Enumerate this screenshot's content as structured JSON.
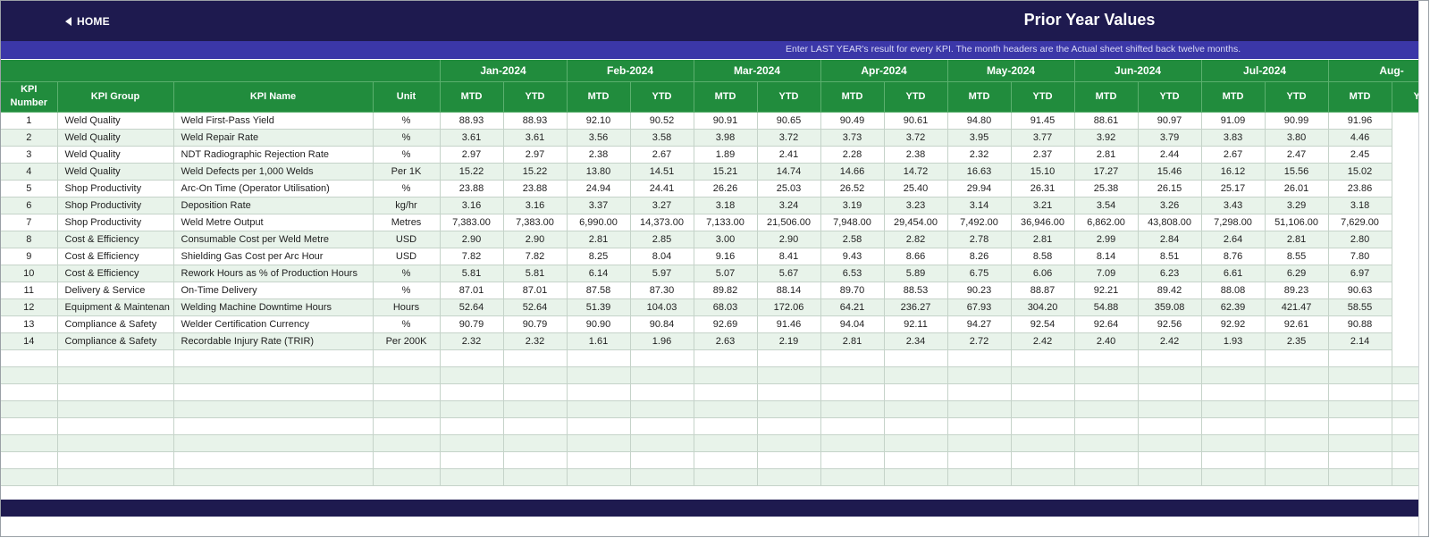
{
  "header": {
    "home_label": "HOME",
    "title": "Prior Year Values",
    "info": "Enter LAST YEAR's result for every KPI. The month headers are the Actual sheet shifted back twelve months."
  },
  "colors": {
    "topbar": "#1e1a4f",
    "infobar": "#3b37a8",
    "header_green": "#218c3d",
    "row_stripe": "#e8f3ea"
  },
  "table": {
    "fixed_headers": [
      "KPI Number",
      "KPI Group",
      "KPI Name",
      "Unit"
    ],
    "months": [
      "Jan-2024",
      "Feb-2024",
      "Mar-2024",
      "Apr-2024",
      "May-2024",
      "Jun-2024",
      "Jul-2024",
      "Aug-"
    ],
    "sub_headers": {
      "mtd": "MTD",
      "ytd": "YTD"
    },
    "rows": [
      [
        "1",
        "Weld Quality",
        "Weld First-Pass Yield",
        "%",
        "88.93",
        "88.93",
        "92.10",
        "90.52",
        "90.91",
        "90.65",
        "90.49",
        "90.61",
        "94.80",
        "91.45",
        "88.61",
        "90.97",
        "91.09",
        "90.99",
        "91.96"
      ],
      [
        "2",
        "Weld Quality",
        "Weld Repair Rate",
        "%",
        "3.61",
        "3.61",
        "3.56",
        "3.58",
        "3.98",
        "3.72",
        "3.73",
        "3.72",
        "3.95",
        "3.77",
        "3.92",
        "3.79",
        "3.83",
        "3.80",
        "4.46"
      ],
      [
        "3",
        "Weld Quality",
        "NDT Radiographic Rejection Rate",
        "%",
        "2.97",
        "2.97",
        "2.38",
        "2.67",
        "1.89",
        "2.41",
        "2.28",
        "2.38",
        "2.32",
        "2.37",
        "2.81",
        "2.44",
        "2.67",
        "2.47",
        "2.45"
      ],
      [
        "4",
        "Weld Quality",
        "Weld Defects per 1,000 Welds",
        "Per 1K",
        "15.22",
        "15.22",
        "13.80",
        "14.51",
        "15.21",
        "14.74",
        "14.66",
        "14.72",
        "16.63",
        "15.10",
        "17.27",
        "15.46",
        "16.12",
        "15.56",
        "15.02"
      ],
      [
        "5",
        "Shop Productivity",
        "Arc-On Time (Operator Utilisation)",
        "%",
        "23.88",
        "23.88",
        "24.94",
        "24.41",
        "26.26",
        "25.03",
        "26.52",
        "25.40",
        "29.94",
        "26.31",
        "25.38",
        "26.15",
        "25.17",
        "26.01",
        "23.86"
      ],
      [
        "6",
        "Shop Productivity",
        "Deposition Rate",
        "kg/hr",
        "3.16",
        "3.16",
        "3.37",
        "3.27",
        "3.18",
        "3.24",
        "3.19",
        "3.23",
        "3.14",
        "3.21",
        "3.54",
        "3.26",
        "3.43",
        "3.29",
        "3.18"
      ],
      [
        "7",
        "Shop Productivity",
        "Weld Metre Output",
        "Metres",
        "7,383.00",
        "7,383.00",
        "6,990.00",
        "14,373.00",
        "7,133.00",
        "21,506.00",
        "7,948.00",
        "29,454.00",
        "7,492.00",
        "36,946.00",
        "6,862.00",
        "43,808.00",
        "7,298.00",
        "51,106.00",
        "7,629.00"
      ],
      [
        "8",
        "Cost & Efficiency",
        "Consumable Cost per Weld Metre",
        "USD",
        "2.90",
        "2.90",
        "2.81",
        "2.85",
        "3.00",
        "2.90",
        "2.58",
        "2.82",
        "2.78",
        "2.81",
        "2.99",
        "2.84",
        "2.64",
        "2.81",
        "2.80"
      ],
      [
        "9",
        "Cost & Efficiency",
        "Shielding Gas Cost per Arc Hour",
        "USD",
        "7.82",
        "7.82",
        "8.25",
        "8.04",
        "9.16",
        "8.41",
        "9.43",
        "8.66",
        "8.26",
        "8.58",
        "8.14",
        "8.51",
        "8.76",
        "8.55",
        "7.80"
      ],
      [
        "10",
        "Cost & Efficiency",
        "Rework Hours as % of Production Hours",
        "%",
        "5.81",
        "5.81",
        "6.14",
        "5.97",
        "5.07",
        "5.67",
        "6.53",
        "5.89",
        "6.75",
        "6.06",
        "7.09",
        "6.23",
        "6.61",
        "6.29",
        "6.97"
      ],
      [
        "11",
        "Delivery & Service",
        "On-Time Delivery",
        "%",
        "87.01",
        "87.01",
        "87.58",
        "87.30",
        "89.82",
        "88.14",
        "89.70",
        "88.53",
        "90.23",
        "88.87",
        "92.21",
        "89.42",
        "88.08",
        "89.23",
        "90.63"
      ],
      [
        "12",
        "Equipment & Maintenan",
        "Welding Machine Downtime Hours",
        "Hours",
        "52.64",
        "52.64",
        "51.39",
        "104.03",
        "68.03",
        "172.06",
        "64.21",
        "236.27",
        "67.93",
        "304.20",
        "54.88",
        "359.08",
        "62.39",
        "421.47",
        "58.55"
      ],
      [
        "13",
        "Compliance & Safety",
        "Welder Certification Currency",
        "%",
        "90.79",
        "90.79",
        "90.90",
        "90.84",
        "92.69",
        "91.46",
        "94.04",
        "92.11",
        "94.27",
        "92.54",
        "92.64",
        "92.56",
        "92.92",
        "92.61",
        "90.88"
      ],
      [
        "14",
        "Compliance & Safety",
        "Recordable Injury Rate (TRIR)",
        "Per 200K",
        "2.32",
        "2.32",
        "1.61",
        "1.96",
        "2.63",
        "2.19",
        "2.81",
        "2.34",
        "2.72",
        "2.42",
        "2.40",
        "2.42",
        "1.93",
        "2.35",
        "2.14"
      ]
    ],
    "empty_rows": 8
  }
}
